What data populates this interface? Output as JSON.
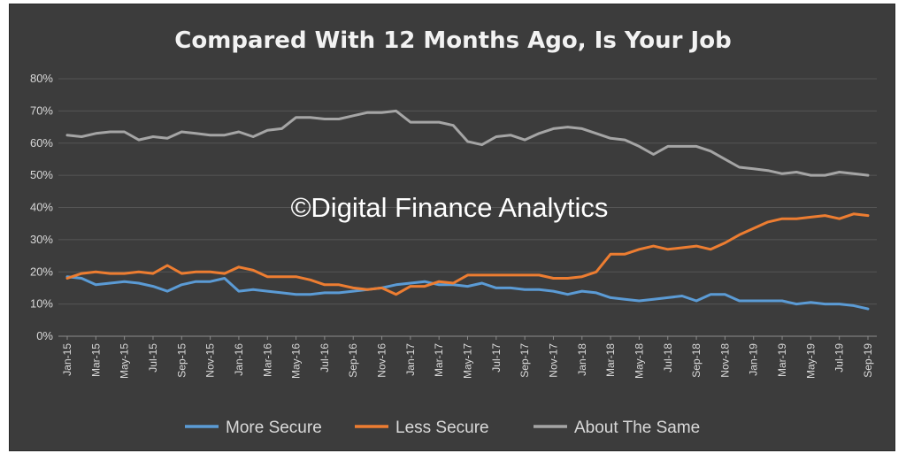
{
  "chart_data": {
    "type": "line",
    "title": "Compared With 12 Months Ago, Is Your Job",
    "watermark": "©Digital Finance Analytics",
    "xlabel": "",
    "ylabel": "",
    "ylim": [
      0,
      80
    ],
    "yticks": [
      "0%",
      "10%",
      "20%",
      "30%",
      "40%",
      "50%",
      "60%",
      "70%",
      "80%"
    ],
    "grid": true,
    "legend_position": "bottom",
    "x_tick_labels": [
      "Jan-15",
      "Mar-15",
      "May-15",
      "Jul-15",
      "Sep-15",
      "Nov-15",
      "Jan-16",
      "Mar-16",
      "May-16",
      "Jul-16",
      "Sep-16",
      "Nov-16",
      "Jan-17",
      "Mar-17",
      "May-17",
      "Jul-17",
      "Sep-17",
      "Nov-17",
      "Jan-18",
      "Mar-18",
      "May-18",
      "Jul-18",
      "Sep-18",
      "Nov-18",
      "Jan-19",
      "Mar-19",
      "May-19",
      "Jul-19",
      "Sep-19"
    ],
    "x": [
      "Jan-15",
      "Feb-15",
      "Mar-15",
      "Apr-15",
      "May-15",
      "Jun-15",
      "Jul-15",
      "Aug-15",
      "Sep-15",
      "Oct-15",
      "Nov-15",
      "Dec-15",
      "Jan-16",
      "Feb-16",
      "Mar-16",
      "Apr-16",
      "May-16",
      "Jun-16",
      "Jul-16",
      "Aug-16",
      "Sep-16",
      "Oct-16",
      "Nov-16",
      "Dec-16",
      "Jan-17",
      "Feb-17",
      "Mar-17",
      "Apr-17",
      "May-17",
      "Jun-17",
      "Jul-17",
      "Aug-17",
      "Sep-17",
      "Oct-17",
      "Nov-17",
      "Dec-17",
      "Jan-18",
      "Feb-18",
      "Mar-18",
      "Apr-18",
      "May-18",
      "Jun-18",
      "Jul-18",
      "Aug-18",
      "Sep-18",
      "Oct-18",
      "Nov-18",
      "Dec-18",
      "Jan-19",
      "Feb-19",
      "Mar-19",
      "Apr-19",
      "May-19",
      "Jun-19",
      "Jul-19",
      "Aug-19",
      "Sep-19"
    ],
    "series": [
      {
        "name": "More Secure",
        "color": "#5b9bd5",
        "values": [
          18.5,
          18,
          16,
          16.5,
          17,
          16.5,
          15.5,
          14,
          16,
          17,
          17,
          18,
          14,
          14.5,
          14,
          13.5,
          13,
          13,
          13.5,
          13.5,
          14,
          14.5,
          15,
          16,
          16.5,
          17,
          16,
          16,
          15.5,
          16.5,
          15,
          15,
          14.5,
          14.5,
          14,
          13,
          14,
          13.5,
          12,
          11.5,
          11,
          11.5,
          12,
          12.5,
          11,
          13,
          13,
          11,
          11,
          11,
          11,
          10,
          10.5,
          10,
          10,
          9.5,
          8.5
        ]
      },
      {
        "name": "Less Secure",
        "color": "#ed7d31",
        "values": [
          18,
          19.5,
          20,
          19.5,
          19.5,
          20,
          19.5,
          22,
          19.5,
          20,
          20,
          19.5,
          21.5,
          20.5,
          18.5,
          18.5,
          18.5,
          17.5,
          16,
          16,
          15,
          14.5,
          15,
          13,
          15.5,
          15.5,
          17,
          16.5,
          19,
          19,
          19,
          19,
          19,
          19,
          18,
          18,
          18.5,
          20,
          25.5,
          25.5,
          27,
          28,
          27,
          27.5,
          28,
          27,
          29,
          31.5,
          33.5,
          35.5,
          36.5,
          36.5,
          37,
          37.5,
          36.5,
          38,
          37.5
        ]
      },
      {
        "name": "About The Same",
        "color": "#a5a5a5",
        "values": [
          62.5,
          62,
          63,
          63.5,
          63.5,
          61,
          62,
          61.5,
          63.5,
          63,
          62.5,
          62.5,
          63.5,
          62,
          64,
          64.5,
          68,
          68,
          67.5,
          67.5,
          68.5,
          69.5,
          69.5,
          70,
          66.5,
          66.5,
          66.5,
          65.5,
          60.5,
          59.5,
          62,
          62.5,
          61,
          63,
          64.5,
          65,
          64.5,
          63,
          61.5,
          61,
          59,
          56.5,
          59,
          59,
          59,
          57.5,
          55,
          52.5,
          52,
          51.5,
          50.5,
          51,
          50,
          50,
          51,
          50.5,
          50
        ]
      }
    ]
  }
}
